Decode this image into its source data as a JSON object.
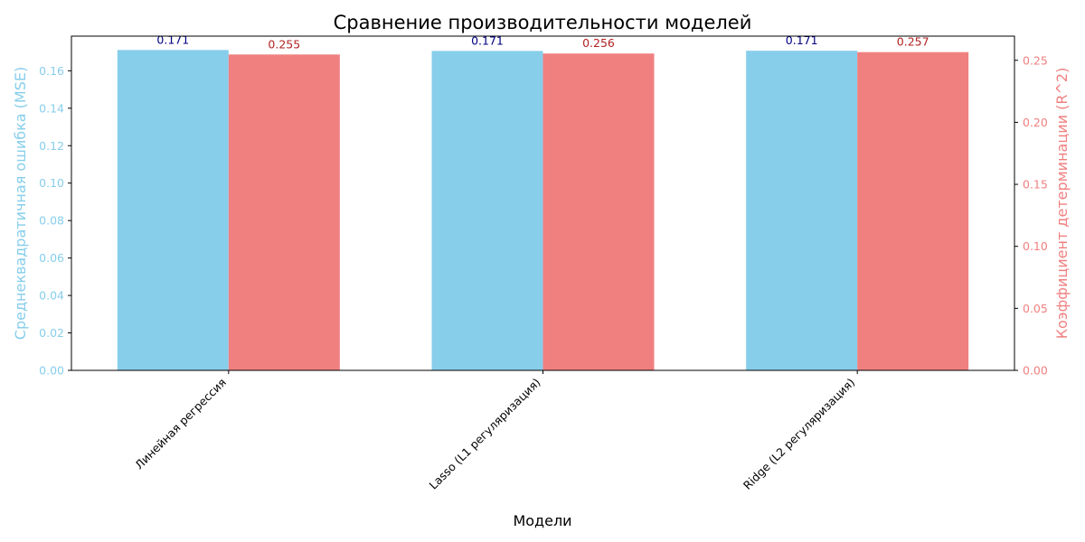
{
  "chart_data": {
    "type": "bar",
    "title": "Сравнение производительности моделей",
    "xlabel": "Модели",
    "categories": [
      "Линейная регрессия",
      "Lasso (L1 регуляризация)",
      "Ridge (L2 регуляризация)"
    ],
    "grid": false,
    "legend": "none",
    "left_axis": {
      "label": "Среднеквадратичная ошибка (MSE)",
      "color": "#87ceeb",
      "ylim": [
        0,
        0.1785
      ],
      "ticks": [
        "0.00",
        "0.02",
        "0.04",
        "0.06",
        "0.08",
        "0.10",
        "0.12",
        "0.14",
        "0.16"
      ]
    },
    "right_axis": {
      "label": "Коэффициент детерминации (R^2)",
      "color": "#f08080",
      "ylim": [
        0,
        0.2695
      ],
      "ticks": [
        "0.00",
        "0.05",
        "0.10",
        "0.15",
        "0.20",
        "0.25"
      ]
    },
    "series": [
      {
        "axis": "left",
        "color": "#87ceeb",
        "label_color": "#000080",
        "values": [
          0.1711,
          0.1706,
          0.1707
        ],
        "data_labels": [
          "0.171",
          "0.171",
          "0.171"
        ]
      },
      {
        "axis": "right",
        "color": "#f08080",
        "label_color": "#b22222",
        "values": [
          0.2547,
          0.2555,
          0.2566
        ],
        "data_labels": [
          "0.255",
          "0.256",
          "0.257"
        ]
      }
    ]
  }
}
